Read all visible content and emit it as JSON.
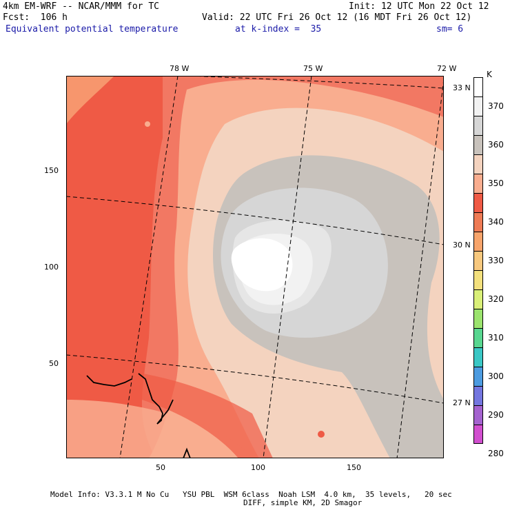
{
  "header": {
    "model": "4km EM-WRF -- NCAR/MMM for TC",
    "forecast": "Fcst:  106 h",
    "init": "Init: 12 UTC Mon 22 Oct 12",
    "valid": "Valid: 22 UTC Fri 26 Oct 12 (16 MDT Fri 26 Oct 12)",
    "field": "Equivalent potential temperature",
    "level": "at k-index =  35",
    "smoothing": "sm= 6"
  },
  "map": {
    "lon_labels": [
      "78 W",
      "75 W",
      "72 W"
    ],
    "lat_labels": [
      "33 N",
      "30 N",
      "27 N"
    ],
    "x_ticks": [
      "50",
      "100",
      "150"
    ],
    "y_ticks": [
      "150",
      "100",
      "50"
    ]
  },
  "colorbar": {
    "unit": "K",
    "labels": [
      "370",
      "360",
      "350",
      "340",
      "330",
      "320",
      "310",
      "300",
      "290",
      "280"
    ],
    "colors": [
      "#ffffff",
      "#f2f2f2",
      "#d6d6d6",
      "#c8c2bc",
      "#f4d3bf",
      "#f9ad8f",
      "#ef5a45",
      "#ee7b55",
      "#f7a46b",
      "#f7c87e",
      "#f3e07d",
      "#d9ef78",
      "#9be36e",
      "#58d690",
      "#3ac7c5",
      "#4c9be0",
      "#7376df",
      "#a463cf",
      "#d14fcf"
    ]
  },
  "footer": {
    "line1": "Model Info: V3.3.1 M No Cu   YSU PBL  WSM 6class  Noah LSM  4.0 km,  35 levels,   20 sec",
    "line2": "DIFF, simple KM, 2D Smagor"
  }
}
